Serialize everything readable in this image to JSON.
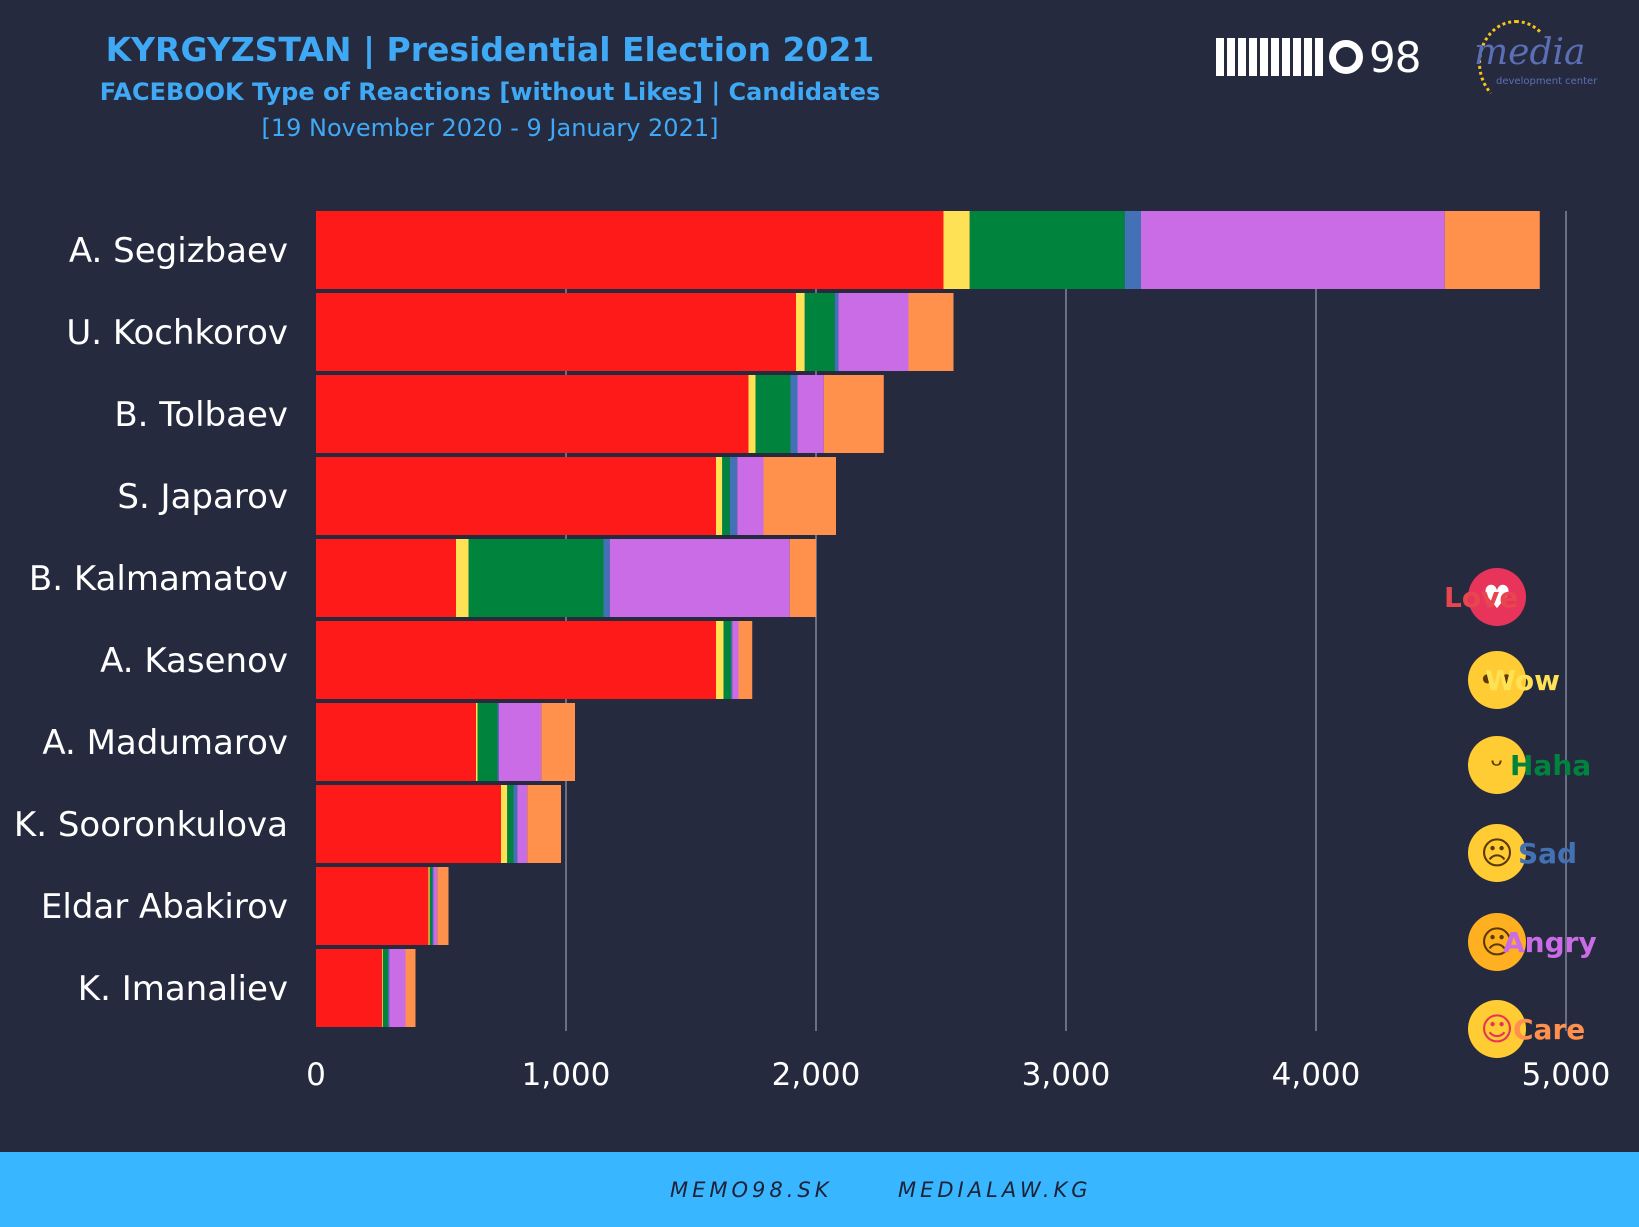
{
  "header": {
    "title": "KYRGYZSTAN | Presidential Election 2021",
    "subtitle": "FACEBOOK Type of Reactions [without Likes] | Candidates",
    "date_range": "[19 November 2020 - 9 January 2021]"
  },
  "logos": {
    "memo_text": "98",
    "media_word": "media",
    "media_sub": "development center"
  },
  "legend": [
    {
      "label": "Love",
      "icon": "love-heart-icon",
      "color": "#e8464f"
    },
    {
      "label": "Wow",
      "icon": "wow-face-icon",
      "color": "#ffe156"
    },
    {
      "label": "Haha",
      "icon": "haha-face-icon",
      "color": "#00843d"
    },
    {
      "label": "Sad",
      "icon": "sad-face-icon",
      "color": "#4271b5"
    },
    {
      "label": "Angry",
      "icon": "angry-face-icon",
      "color": "#c96ce5"
    },
    {
      "label": "Care",
      "icon": "care-face-icon",
      "color": "#ff914d"
    }
  ],
  "chart_data": {
    "type": "bar",
    "orientation": "horizontal",
    "stacked": true,
    "categories": [
      "A. Segizbaev",
      "U. Kochkorov",
      "B. Tolbaev",
      "S. Japarov",
      "B. Kalmamatov",
      "A. Kasenov",
      "A. Madumarov",
      "K. Sooronkulova",
      "Eldar Abakirov",
      "K. Imanaliev"
    ],
    "series": [
      {
        "name": "Love",
        "color": "#ff1a1a",
        "values": [
          2510,
          1920,
          1730,
          1600,
          560,
          1600,
          640,
          740,
          450,
          265
        ]
      },
      {
        "name": "Wow",
        "color": "#ffe156",
        "values": [
          105,
          35,
          28,
          25,
          50,
          30,
          6,
          25,
          5,
          3
        ]
      },
      {
        "name": "Haha",
        "color": "#00843d",
        "values": [
          620,
          120,
          140,
          30,
          540,
          30,
          80,
          25,
          10,
          20
        ]
      },
      {
        "name": "Sad",
        "color": "#4271b5",
        "values": [
          65,
          15,
          28,
          30,
          25,
          5,
          5,
          15,
          5,
          5
        ]
      },
      {
        "name": "Angry",
        "color": "#c96ce5",
        "values": [
          1215,
          280,
          105,
          105,
          720,
          25,
          170,
          40,
          15,
          65
        ]
      },
      {
        "name": "Care",
        "color": "#ff914d",
        "values": [
          380,
          180,
          240,
          290,
          105,
          55,
          135,
          135,
          45,
          40
        ]
      }
    ],
    "x_ticks": [
      "0",
      "1,000",
      "2,000",
      "3,000",
      "4,000",
      "5,000"
    ],
    "xlim": [
      0,
      5000
    ],
    "grid": "vertical"
  },
  "footer": {
    "link1": "MEMO98.SK",
    "link2": "MEDIALAW.KG"
  }
}
